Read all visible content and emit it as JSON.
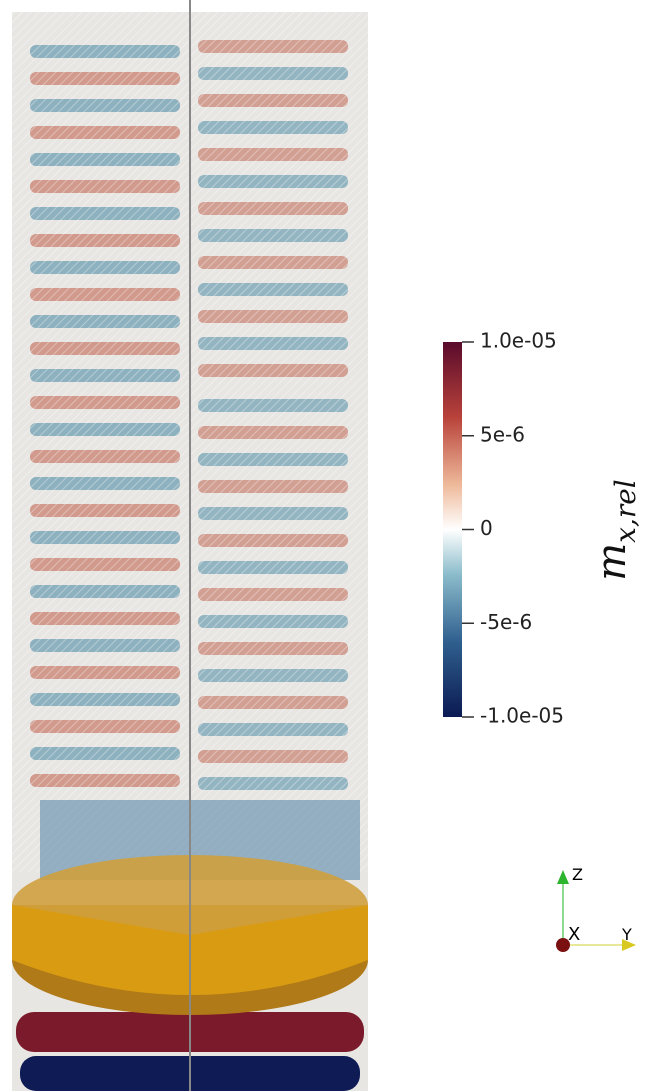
{
  "colorbar": {
    "title": "m",
    "title_subscript": "x,rel",
    "ylim": [
      -1e-05,
      1e-05
    ],
    "yticks": [
      {
        "value": 1e-05,
        "label": "1.0e-05"
      },
      {
        "value": 5e-06,
        "label": "5e-6"
      },
      0,
      {
        "value": -5e-06,
        "label": "-5e-6"
      },
      {
        "value": -1e-05,
        "label": "-1.0e-05"
      }
    ]
  },
  "axes_triad": {
    "labels": [
      "Z",
      "X",
      "Y"
    ]
  }
}
